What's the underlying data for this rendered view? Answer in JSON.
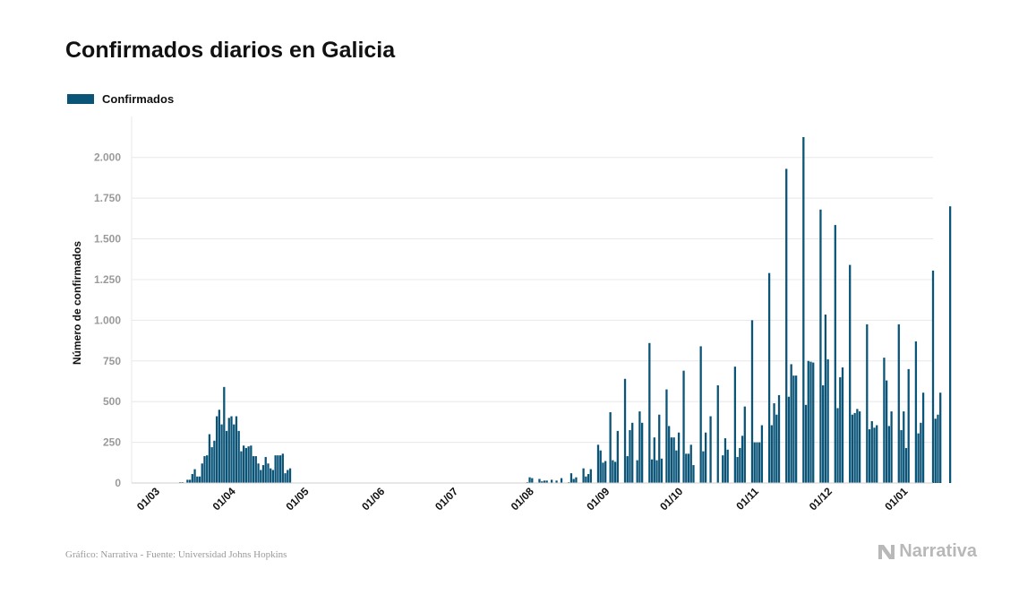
{
  "title": "Confirmados diarios en Galicia",
  "legend": {
    "label": "Confirmados",
    "color": "#0a5478"
  },
  "footer": {
    "source": "Gráfico: Narrativa - Fuente: Universidad Johns Hopkins",
    "brand": "Narrativa"
  },
  "chart_data": {
    "type": "bar",
    "title": "Confirmados diarios en Galicia",
    "ylabel": "Número de confirmados",
    "xlabel": "",
    "ylim": [
      0,
      2125
    ],
    "yticks": [
      0,
      250,
      500,
      750,
      1000,
      1250,
      1500,
      1750,
      2000
    ],
    "ytick_labels": [
      "0",
      "250",
      "500",
      "750",
      "1.000",
      "1.250",
      "1.500",
      "1.750",
      "2.000"
    ],
    "xtick_labels": [
      "01/03",
      "01/04",
      "01/05",
      "01/06",
      "01/07",
      "01/08",
      "01/09",
      "01/10",
      "01/11",
      "01/12",
      "01/01"
    ],
    "xtick_days": [
      0,
      31,
      61,
      92,
      122,
      153,
      184,
      214,
      245,
      275,
      306
    ],
    "grid": true,
    "legend_position": "top-left",
    "series": [
      {
        "name": "Confirmados",
        "color": "#0a5478",
        "start_date": "2020-03-01",
        "values": [
          0,
          0,
          0,
          0,
          0,
          0,
          0,
          0,
          0,
          0,
          0,
          5,
          5,
          0,
          20,
          20,
          55,
          85,
          40,
          40,
          120,
          165,
          170,
          300,
          220,
          260,
          410,
          450,
          360,
          590,
          320,
          400,
          410,
          360,
          410,
          320,
          195,
          230,
          215,
          225,
          230,
          165,
          165,
          120,
          80,
          110,
          160,
          120,
          90,
          80,
          170,
          170,
          170,
          180,
          60,
          80,
          90,
          0,
          0,
          0,
          0,
          0,
          0,
          0,
          0,
          0,
          0,
          0,
          0,
          0,
          0,
          0,
          0,
          0,
          0,
          0,
          0,
          0,
          0,
          0,
          0,
          0,
          0,
          0,
          0,
          0,
          0,
          0,
          0,
          0,
          0,
          0,
          0,
          0,
          0,
          0,
          0,
          0,
          0,
          0,
          0,
          0,
          0,
          0,
          0,
          0,
          0,
          0,
          0,
          0,
          0,
          0,
          0,
          0,
          0,
          0,
          0,
          0,
          0,
          0,
          0,
          0,
          0,
          0,
          0,
          0,
          0,
          0,
          0,
          0,
          0,
          0,
          0,
          0,
          0,
          0,
          0,
          0,
          0,
          0,
          0,
          0,
          0,
          0,
          0,
          0,
          0,
          0,
          0,
          0,
          0,
          0,
          0,
          5,
          35,
          30,
          0,
          0,
          25,
          10,
          15,
          15,
          0,
          20,
          0,
          15,
          0,
          30,
          0,
          0,
          5,
          60,
          25,
          35,
          0,
          0,
          90,
          40,
          55,
          85,
          0,
          0,
          235,
          200,
          125,
          135,
          0,
          435,
          140,
          130,
          320,
          0,
          0,
          640,
          165,
          325,
          370,
          0,
          140,
          440,
          370,
          0,
          0,
          860,
          145,
          280,
          140,
          420,
          150,
          0,
          575,
          350,
          280,
          280,
          200,
          310,
          0,
          690,
          180,
          180,
          235,
          110,
          0,
          0,
          840,
          195,
          310,
          0,
          410,
          0,
          0,
          600,
          0,
          170,
          275,
          205,
          0,
          0,
          715,
          160,
          215,
          290,
          470,
          0,
          0,
          1000,
          250,
          250,
          250,
          355,
          0,
          0,
          1290,
          355,
          490,
          420,
          540,
          0,
          0,
          1930,
          530,
          730,
          660,
          660,
          0,
          0,
          2125,
          480,
          750,
          745,
          740,
          0,
          0,
          1680,
          600,
          1035,
          760,
          0,
          0,
          1585,
          460,
          650,
          710,
          0,
          0,
          1340,
          420,
          430,
          455,
          440,
          0,
          0,
          975,
          330,
          380,
          340,
          355,
          0,
          0,
          770,
          630,
          350,
          440,
          0,
          0,
          975,
          325,
          440,
          215,
          700,
          0,
          0,
          870,
          305,
          370,
          555,
          0,
          0,
          0,
          1305,
          395,
          420,
          555,
          0,
          0,
          0,
          1700
        ]
      }
    ]
  }
}
